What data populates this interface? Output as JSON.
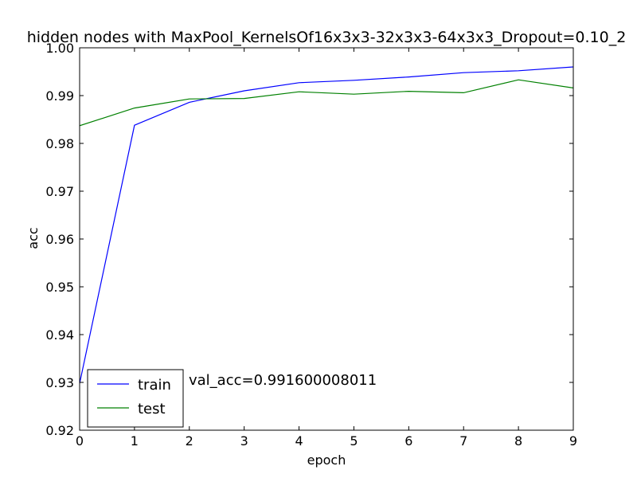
{
  "chart_data": {
    "type": "line",
    "title": "hidden nodes with MaxPool_KernelsOf16x3x3-32x3x3-64x3x3_Dropout=0.10_2",
    "xlabel": "epoch",
    "ylabel": "acc",
    "xlim": [
      0,
      9
    ],
    "ylim": [
      0.92,
      1.0
    ],
    "x_ticks": [
      "0",
      "1",
      "2",
      "3",
      "4",
      "5",
      "6",
      "7",
      "8",
      "9"
    ],
    "y_ticks": [
      "0.92",
      "0.93",
      "0.94",
      "0.95",
      "0.96",
      "0.97",
      "0.98",
      "0.99",
      "1.00"
    ],
    "grid": false,
    "legend_position": "lower-left",
    "x": [
      0,
      1,
      2,
      3,
      4,
      5,
      6,
      7,
      8,
      9
    ],
    "series": [
      {
        "name": "train",
        "color": "#0000ff",
        "values": [
          0.9298,
          0.9838,
          0.9886,
          0.991,
          0.9927,
          0.9932,
          0.9939,
          0.9948,
          0.9952,
          0.996
        ]
      },
      {
        "name": "test",
        "color": "#008000",
        "values": [
          0.9837,
          0.9874,
          0.9893,
          0.9894,
          0.9908,
          0.9903,
          0.9909,
          0.9906,
          0.9933,
          0.9916
        ]
      }
    ],
    "annotation": "val_acc=0.991600008011"
  }
}
